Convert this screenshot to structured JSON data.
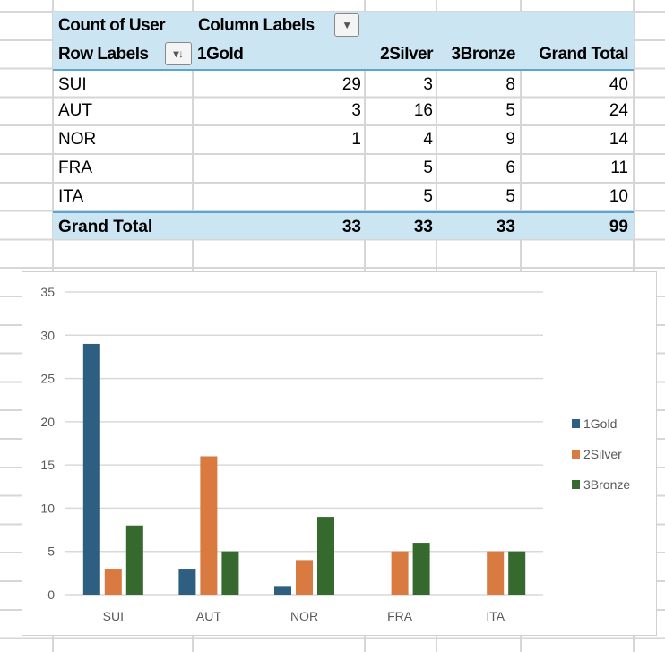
{
  "pivot": {
    "value_field": "Count of User",
    "column_labels": "Column Labels",
    "row_labels": "Row Labels",
    "columns": [
      "1Gold",
      "2Silver",
      "3Bronze",
      "Grand Total"
    ],
    "rows": [
      {
        "label": "SUI",
        "values": [
          "29",
          "3",
          "8",
          "40"
        ]
      },
      {
        "label": "AUT",
        "values": [
          "3",
          "16",
          "5",
          "24"
        ]
      },
      {
        "label": "NOR",
        "values": [
          "1",
          "4",
          "9",
          "14"
        ]
      },
      {
        "label": "FRA",
        "values": [
          "",
          "5",
          "6",
          "11"
        ]
      },
      {
        "label": "ITA",
        "values": [
          "",
          "5",
          "5",
          "10"
        ]
      }
    ],
    "grand_total": {
      "label": "Grand Total",
      "values": [
        "33",
        "33",
        "33",
        "99"
      ]
    },
    "column_filter_icon": "dropdown-arrow-icon",
    "row_sort_icon": "filter-sort-icon"
  },
  "chart_data": {
    "type": "bar",
    "categories": [
      "SUI",
      "AUT",
      "NOR",
      "FRA",
      "ITA"
    ],
    "series": [
      {
        "name": "1Gold",
        "color": "#2E5F80",
        "values": [
          29,
          3,
          1,
          0,
          0
        ]
      },
      {
        "name": "2Silver",
        "color": "#D97A40",
        "values": [
          3,
          16,
          4,
          5,
          5
        ]
      },
      {
        "name": "3Bronze",
        "color": "#35692E",
        "values": [
          8,
          5,
          9,
          6,
          5
        ]
      }
    ],
    "yticks": [
      0,
      5,
      10,
      15,
      20,
      25,
      30,
      35
    ],
    "ylim": [
      0,
      35
    ],
    "grid": true,
    "legend": "right",
    "title": "",
    "xlabel": "",
    "ylabel": ""
  }
}
